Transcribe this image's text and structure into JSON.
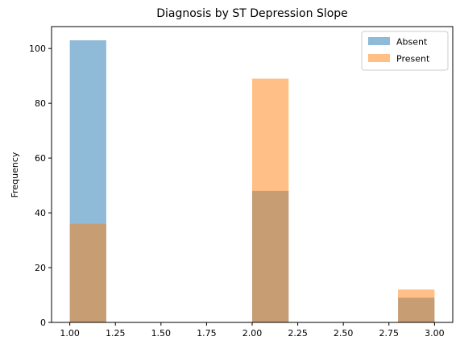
{
  "chart_data": {
    "type": "histogram",
    "title": "Diagnosis by ST Depression Slope",
    "xlabel": "",
    "ylabel": "Frequency",
    "xlim": [
      0.9,
      3.1
    ],
    "ylim": [
      0,
      108
    ],
    "xticks": [
      "1.00",
      "1.25",
      "1.50",
      "1.75",
      "2.00",
      "2.25",
      "2.50",
      "2.75",
      "3.00"
    ],
    "yticks": [
      "0",
      "20",
      "40",
      "60",
      "80",
      "100"
    ],
    "grid": false,
    "legend_position": "top-right",
    "series": [
      {
        "name": "Absent",
        "color": "#1f77b4",
        "alpha": 0.5,
        "bins": [
          {
            "x0": 1.0,
            "x1": 1.2,
            "count": 103
          },
          {
            "x0": 2.0,
            "x1": 2.2,
            "count": 48
          },
          {
            "x0": 2.8,
            "x1": 3.0,
            "count": 9
          }
        ]
      },
      {
        "name": "Present",
        "color": "#ff7f0e",
        "alpha": 0.5,
        "bins": [
          {
            "x0": 1.0,
            "x1": 1.2,
            "count": 36
          },
          {
            "x0": 2.0,
            "x1": 2.2,
            "count": 89
          },
          {
            "x0": 2.8,
            "x1": 3.0,
            "count": 12
          }
        ]
      }
    ]
  }
}
